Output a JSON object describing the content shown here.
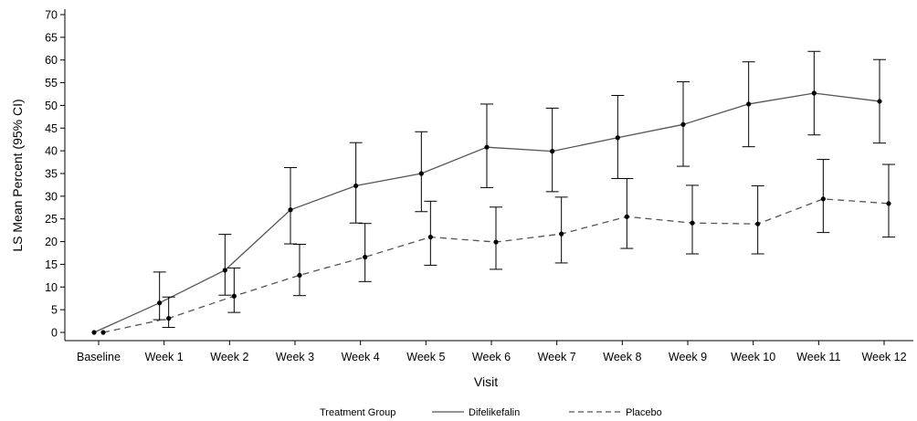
{
  "chart_data": {
    "type": "line",
    "title": "",
    "xlabel": "Visit",
    "ylabel": "LS Mean Percent (95% CI)",
    "categories": [
      "Baseline",
      "Week 1",
      "Week 2",
      "Week 3",
      "Week 4",
      "Week 5",
      "Week 6",
      "Week 7",
      "Week 8",
      "Week 9",
      "Week 10",
      "Week 11",
      "Week 12"
    ],
    "ylim": [
      0,
      70
    ],
    "yticks": [
      0,
      5,
      10,
      15,
      20,
      25,
      30,
      35,
      40,
      45,
      50,
      55,
      60,
      65,
      70
    ],
    "grid": false,
    "legend": {
      "title": "Treatment Group",
      "placement": "bottom"
    },
    "series": [
      {
        "name": "Difelikefalin",
        "line_style": "solid",
        "color": "#555555",
        "values": [
          0,
          6.5,
          13.7,
          27.0,
          32.3,
          35.0,
          40.8,
          39.9,
          42.9,
          45.8,
          50.3,
          52.7,
          50.9
        ],
        "ci_lower": [
          0,
          2.8,
          8.2,
          19.5,
          24.1,
          26.6,
          31.9,
          31.0,
          33.9,
          36.6,
          40.9,
          43.5,
          41.7
        ],
        "ci_upper": [
          0,
          13.3,
          21.6,
          36.3,
          41.8,
          44.2,
          50.3,
          49.4,
          52.2,
          55.2,
          59.6,
          61.9,
          60.1
        ]
      },
      {
        "name": "Placebo",
        "line_style": "dashed",
        "color": "#555555",
        "values": [
          0,
          3.1,
          8.0,
          12.6,
          16.6,
          21.0,
          19.9,
          21.7,
          25.5,
          24.1,
          23.9,
          29.4,
          28.4
        ],
        "ci_lower": [
          0,
          1.1,
          4.4,
          8.1,
          11.2,
          14.8,
          13.9,
          15.3,
          18.5,
          17.3,
          17.3,
          22.0,
          21.0
        ],
        "ci_upper": [
          0,
          7.8,
          14.2,
          19.4,
          24.0,
          28.9,
          27.6,
          29.8,
          33.9,
          32.4,
          32.3,
          38.1,
          37.0
        ]
      }
    ]
  }
}
